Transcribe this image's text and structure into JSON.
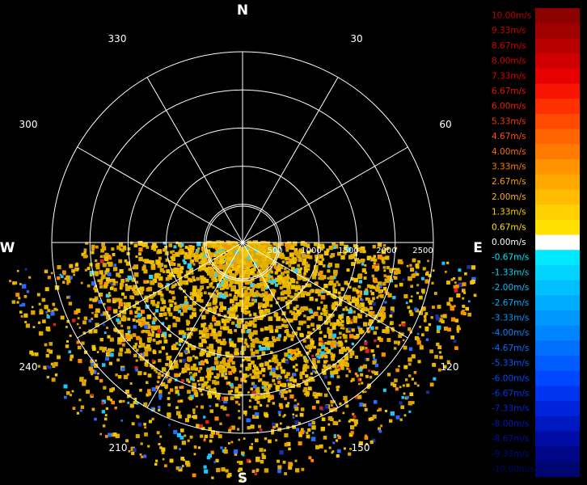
{
  "chart_data": {
    "type": "polar-radar",
    "compass": {
      "north": "N",
      "south": "S",
      "east": "E",
      "west": "W"
    },
    "angle_labels": [
      "30",
      "60",
      "120",
      "150",
      "210",
      "240",
      "300",
      "330"
    ],
    "range_labels": [
      "500",
      "1000",
      "1500",
      "2000",
      "2500"
    ],
    "ranges": [
      500,
      1000,
      1500,
      2000,
      2500
    ],
    "max_range": 2500,
    "spoke_angles": [
      0,
      30,
      60,
      90,
      120,
      150,
      180,
      210,
      240,
      270,
      300,
      330
    ],
    "coverage_sector_deg": [
      90,
      270
    ],
    "dominant_value_range": "0.67m/s – 2.67m/s (receding)",
    "legend": {
      "labels": [
        "10.00m/s",
        "9.33m/s",
        "8.67m/s",
        "8.00m/s",
        "7.33m/s",
        "6.67m/s",
        "6.00m/s",
        "5.33m/s",
        "4.67m/s",
        "4.00m/s",
        "3.33m/s",
        "2.67m/s",
        "2.00m/s",
        "1.33m/s",
        "0.67m/s",
        "0.00m/s",
        "-0.67m/s",
        "-1.33m/s",
        "-2.00m/s",
        "-2.67m/s",
        "-3.33m/s",
        "-4.00m/s",
        "-4.67m/s",
        "-5.33m/s",
        "-6.00m/s",
        "-6.67m/s",
        "-7.33m/s",
        "-8.00m/s",
        "-8.67m/s",
        "-9.33m/s",
        "-10.00m/s"
      ],
      "colors": [
        "#8c0000",
        "#a00000",
        "#b80000",
        "#d00000",
        "#e60000",
        "#f81400",
        "#ff3000",
        "#ff4a00",
        "#ff6400",
        "#ff7c00",
        "#ff9400",
        "#ffa800",
        "#ffbc00",
        "#ffd000",
        "#ffe000",
        "#ffffff",
        "#00e8ff",
        "#00d4ff",
        "#00c0ff",
        "#00acff",
        "#0098ff",
        "#0084ff",
        "#0070ff",
        "#005cff",
        "#0048ff",
        "#0034f0",
        "#0024dc",
        "#0018c0",
        "#000ca4",
        "#000888",
        "#000670"
      ],
      "text_colors": [
        "#c00000",
        "#c80000",
        "#d00000",
        "#d80000",
        "#e00000",
        "#e81000",
        "#f02000",
        "#f83800",
        "#ff5000",
        "#ff6800",
        "#ff8000",
        "#ff9c00",
        "#ffb400",
        "#ffcc00",
        "#ffe000",
        "#ffffff",
        "#00e8ff",
        "#00d4ff",
        "#00c0ff",
        "#00acff",
        "#0098ff",
        "#0084ff",
        "#0070ff",
        "#005cff",
        "#0048ff",
        "#0034f0",
        "#0024dc",
        "#0018c0",
        "#000ca4",
        "#000888",
        "#000670"
      ]
    }
  }
}
